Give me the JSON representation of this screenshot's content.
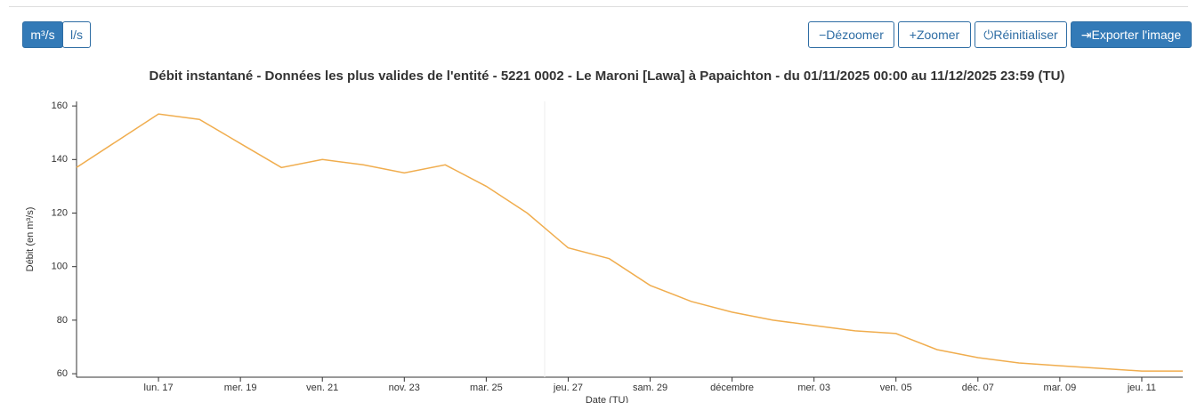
{
  "toolbar": {
    "units": [
      "m³/s",
      "l/s"
    ],
    "buttons": [
      "Dézoomer",
      "Zoomer",
      "Réinitialiser",
      "Exporter l'image"
    ]
  },
  "chart_data": {
    "type": "line",
    "title": "Débit instantané - Données les plus valides de l'entité - 5221 0002 - Le Maroni [Lawa] à Papaichton - du 01/11/2025 00:00 au 11/12/2025 23:59 (TU)",
    "x_label": "Date (TU)",
    "y_label": "Débit (en m³/s)",
    "x": [
      "2025-11-15",
      "2025-11-16",
      "2025-11-17",
      "2025-11-18",
      "2025-11-19",
      "2025-11-20",
      "2025-11-21",
      "2025-11-22",
      "2025-11-23",
      "2025-11-24",
      "2025-11-25",
      "2025-11-26",
      "2025-11-27",
      "2025-11-28",
      "2025-11-29",
      "2025-11-30",
      "2025-12-01",
      "2025-12-02",
      "2025-12-03",
      "2025-12-04",
      "2025-12-05",
      "2025-12-06",
      "2025-12-07",
      "2025-12-08",
      "2025-12-09",
      "2025-12-10",
      "2025-12-11",
      "2025-12-12"
    ],
    "series": [
      {
        "color": "#f0ad4e",
        "values": [
          137,
          147,
          157,
          155,
          146,
          137,
          140,
          138,
          135,
          138,
          130,
          120,
          107,
          103,
          93,
          87,
          83,
          80,
          78,
          76,
          75,
          69,
          66,
          64,
          63,
          62,
          61,
          61
        ]
      }
    ],
    "xlim": [
      "2025-11-15",
      "2025-12-12"
    ],
    "xticks": [
      {
        "value": "2025-11-17",
        "label": "lun. 17"
      },
      {
        "value": "2025-11-19",
        "label": "mer. 19"
      },
      {
        "value": "2025-11-21",
        "label": "ven. 21"
      },
      {
        "value": "2025-11-23",
        "label": "nov. 23"
      },
      {
        "value": "2025-11-25",
        "label": "mar. 25"
      },
      {
        "value": "2025-11-27",
        "label": "jeu. 27"
      },
      {
        "value": "2025-11-29",
        "label": "sam. 29"
      },
      {
        "value": "2025-12-01",
        "label": "décembre"
      },
      {
        "value": "2025-12-03",
        "label": "mer. 03"
      },
      {
        "value": "2025-12-05",
        "label": "ven. 05"
      },
      {
        "value": "2025-12-07",
        "label": "déc. 07"
      },
      {
        "value": "2025-12-09",
        "label": "mar. 09"
      },
      {
        "value": "2025-12-11",
        "label": "jeu. 11"
      }
    ],
    "ylim": [
      58.7,
      161.7
    ],
    "yticks": [
      60,
      80,
      100,
      120,
      140,
      160
    ],
    "grid": false
  }
}
